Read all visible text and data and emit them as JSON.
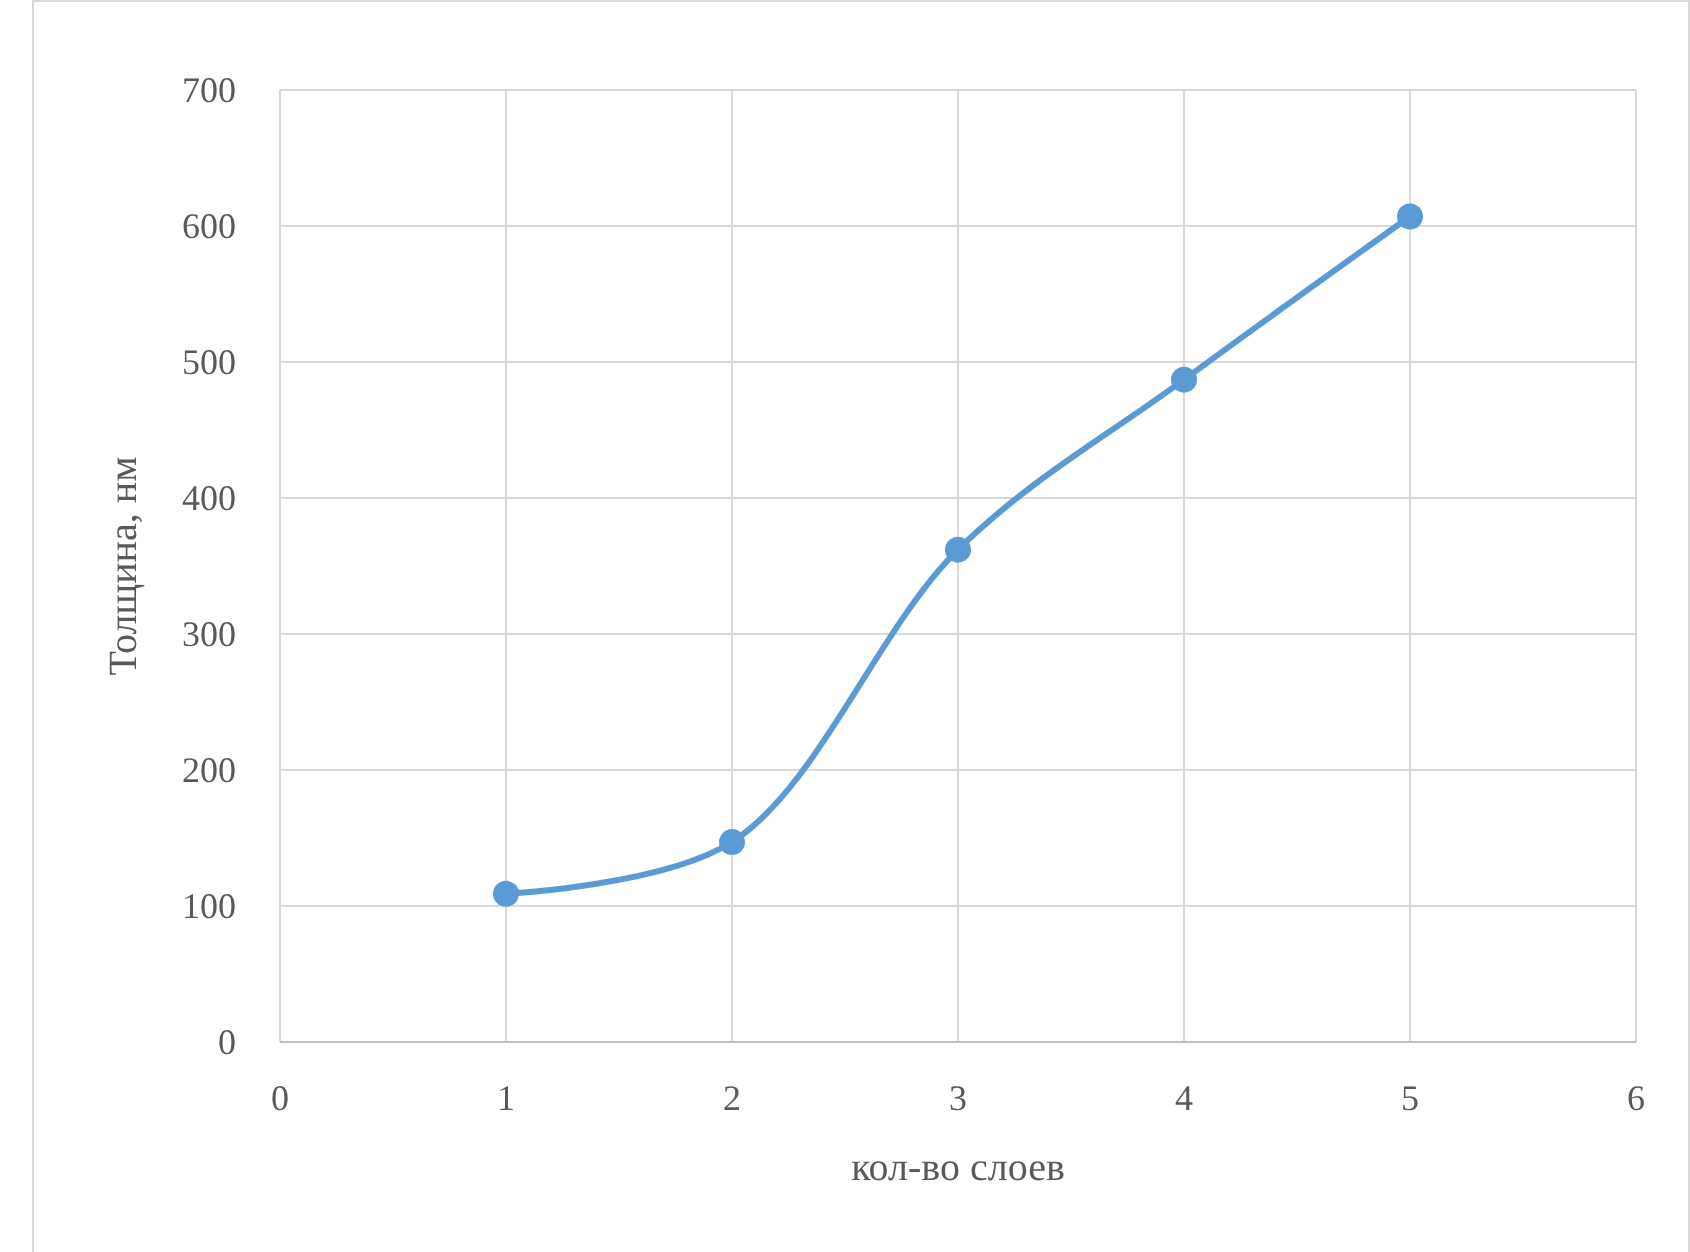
{
  "chart_data": {
    "type": "line",
    "xlabel": "кол-во слоев",
    "ylabel": "Толщина, нм",
    "x": [
      1,
      2,
      3,
      4,
      5
    ],
    "series": [
      {
        "color": "#5b9bd5",
        "values": [
          109,
          147,
          362,
          487,
          607
        ]
      }
    ],
    "xlim": [
      0,
      6
    ],
    "xticks": [
      0,
      1,
      2,
      3,
      4,
      5,
      6
    ],
    "ylim": [
      0,
      700
    ],
    "yticks": [
      0,
      100,
      200,
      300,
      400,
      500,
      600,
      700
    ],
    "grid": true,
    "marker": "circle",
    "line_style": "solid"
  }
}
